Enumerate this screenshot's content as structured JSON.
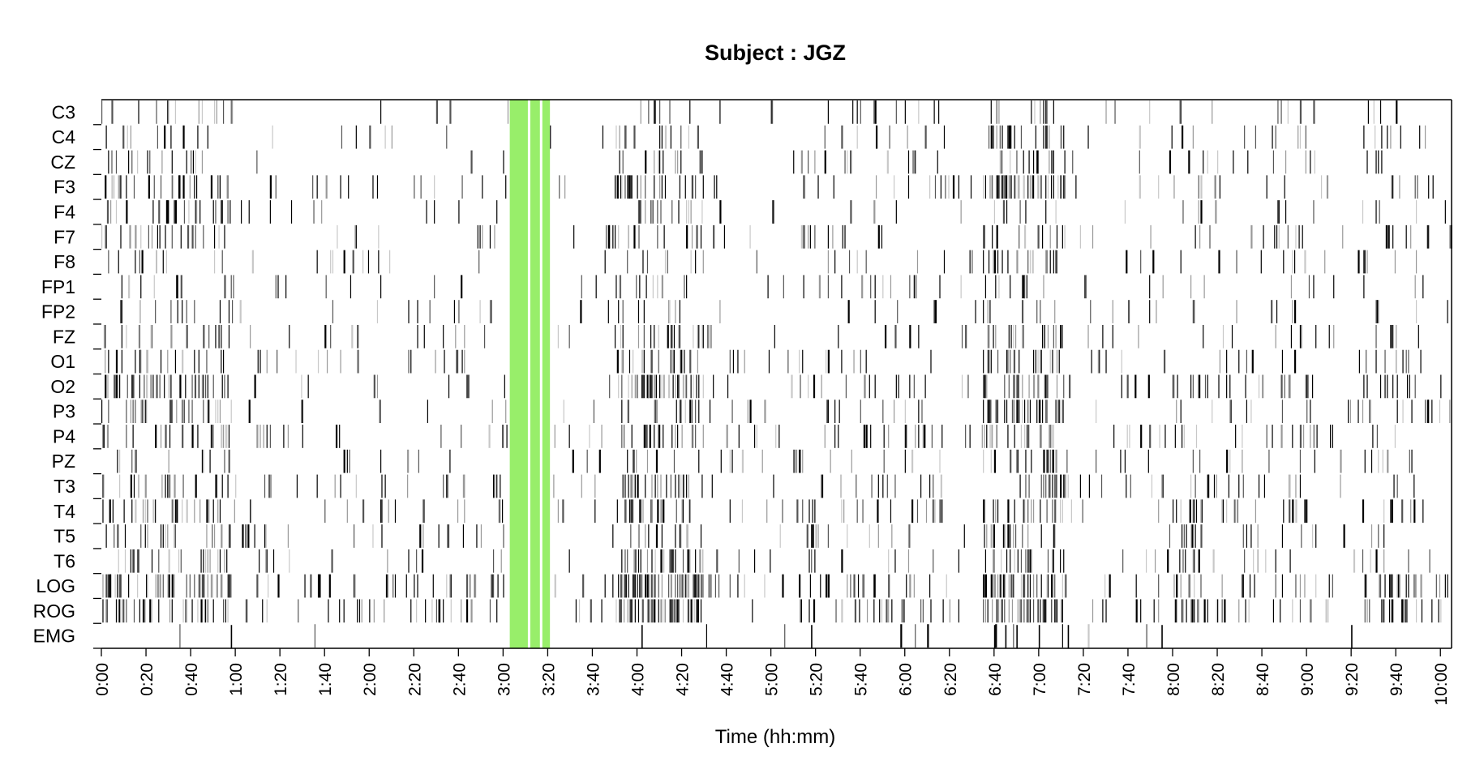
{
  "chart_data": {
    "type": "heatmap",
    "title": "Subject : JGZ",
    "xlabel": "Time (hh:mm)",
    "ylabel": "",
    "x_unit": "minutes",
    "xlim": [
      0,
      605
    ],
    "xtick_values": [
      0,
      20,
      40,
      60,
      80,
      100,
      120,
      140,
      160,
      180,
      200,
      220,
      240,
      260,
      280,
      300,
      320,
      340,
      360,
      380,
      400,
      420,
      440,
      460,
      480,
      500,
      520,
      540,
      560,
      580,
      600
    ],
    "xtick_labels": [
      "0:00",
      "0:20",
      "0:40",
      "1:00",
      "1:20",
      "1:40",
      "2:00",
      "2:20",
      "2:40",
      "3:00",
      "3:20",
      "3:40",
      "4:00",
      "4:20",
      "4:40",
      "5:00",
      "5:20",
      "5:40",
      "6:00",
      "6:20",
      "6:40",
      "7:00",
      "7:20",
      "7:40",
      "8:00",
      "8:20",
      "8:40",
      "9:00",
      "9:20",
      "9:40",
      "10:00"
    ],
    "channels": [
      "C3",
      "C4",
      "CZ",
      "F3",
      "F4",
      "F7",
      "F8",
      "FP1",
      "FP2",
      "FZ",
      "O1",
      "O2",
      "P3",
      "P4",
      "PZ",
      "T3",
      "T4",
      "T5",
      "T6",
      "LOG",
      "ROG",
      "EMG"
    ],
    "highlight": {
      "color": "#98ee6a",
      "start": 183,
      "end": 201
    },
    "activity_profile": [
      {
        "start": 0,
        "end": 60,
        "density": 0.38
      },
      {
        "start": 60,
        "end": 140,
        "density": 0.1
      },
      {
        "start": 140,
        "end": 183,
        "density": 0.13
      },
      {
        "start": 201,
        "end": 230,
        "density": 0.06
      },
      {
        "start": 230,
        "end": 270,
        "density": 0.48
      },
      {
        "start": 270,
        "end": 310,
        "density": 0.1
      },
      {
        "start": 310,
        "end": 380,
        "density": 0.2
      },
      {
        "start": 380,
        "end": 395,
        "density": 0.07
      },
      {
        "start": 395,
        "end": 432,
        "density": 0.52
      },
      {
        "start": 432,
        "end": 480,
        "density": 0.08
      },
      {
        "start": 480,
        "end": 500,
        "density": 0.24
      },
      {
        "start": 500,
        "end": 525,
        "density": 0.13
      },
      {
        "start": 525,
        "end": 545,
        "density": 0.22
      },
      {
        "start": 545,
        "end": 565,
        "density": 0.07
      },
      {
        "start": 565,
        "end": 590,
        "density": 0.26
      },
      {
        "start": 590,
        "end": 605,
        "density": 0.08
      }
    ],
    "channel_weights": {
      "C3": 0.55,
      "C4": 0.55,
      "CZ": 0.6,
      "F3": 0.95,
      "F4": 0.55,
      "F7": 0.6,
      "F8": 0.55,
      "FP1": 0.45,
      "FP2": 0.45,
      "FZ": 0.6,
      "O1": 0.95,
      "O2": 1.0,
      "P3": 0.95,
      "P4": 0.85,
      "PZ": 0.7,
      "T3": 0.85,
      "T4": 0.85,
      "T5": 0.75,
      "T6": 0.75,
      "LOG": 1.6,
      "ROG": 1.6,
      "EMG": 0.08
    },
    "grid": false,
    "legend": "none"
  }
}
